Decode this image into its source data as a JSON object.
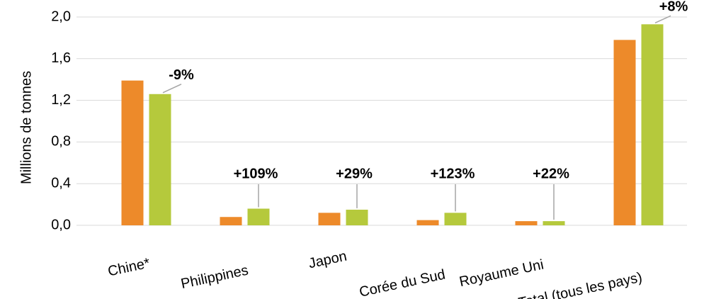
{
  "chart_data": {
    "type": "bar",
    "y_label": "Millions de tonnes",
    "categories": [
      "Chine*",
      "Philippines",
      "Japon",
      "Corée du Sud",
      "Royaume Uni",
      "Total (tous les pays)"
    ],
    "series": [
      {
        "color": "#ed8a2a",
        "values": [
          1.39,
          0.08,
          0.12,
          0.05,
          0.04,
          1.78
        ]
      },
      {
        "color": "#b5c93c",
        "values": [
          1.26,
          0.16,
          0.15,
          0.12,
          0.04,
          1.93
        ]
      }
    ],
    "annotations": [
      "-9%",
      "+109%",
      "+29%",
      "+123%",
      "+22%",
      "+8%"
    ],
    "ylim": [
      0,
      2
    ],
    "yticks": [
      {
        "value": 0,
        "label": "0,0"
      },
      {
        "value": 0.4,
        "label": "0,4"
      },
      {
        "value": 0.8,
        "label": "0,8"
      },
      {
        "value": 1.2,
        "label": "1,2"
      },
      {
        "value": 1.6,
        "label": "1,6"
      },
      {
        "value": 2,
        "label": "2,0"
      }
    ],
    "grid": true
  }
}
